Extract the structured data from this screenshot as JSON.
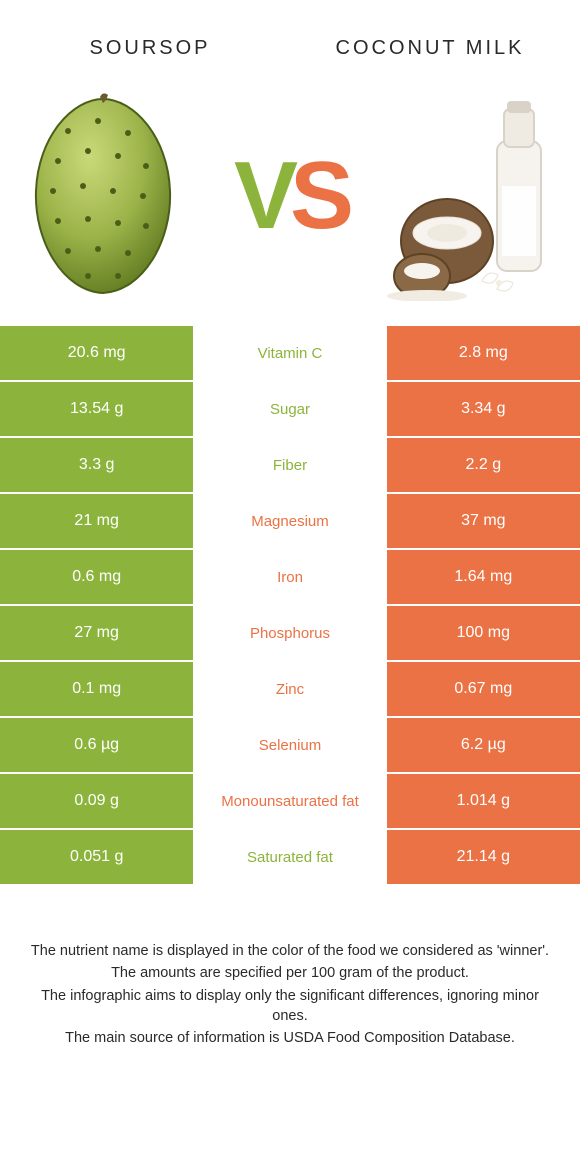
{
  "colors": {
    "left": "#8cb43c",
    "right": "#eb7245",
    "text_dark": "#2a2a2a",
    "white": "#ffffff"
  },
  "left": {
    "title": "SOURSOP"
  },
  "right": {
    "title": "COCONUT MILK"
  },
  "vs": {
    "v": "V",
    "s": "S"
  },
  "rows": [
    {
      "left": "20.6 mg",
      "label": "Vitamin C",
      "right": "2.8 mg",
      "winner": "left"
    },
    {
      "left": "13.54 g",
      "label": "Sugar",
      "right": "3.34 g",
      "winner": "left"
    },
    {
      "left": "3.3 g",
      "label": "Fiber",
      "right": "2.2 g",
      "winner": "left"
    },
    {
      "left": "21 mg",
      "label": "Magnesium",
      "right": "37 mg",
      "winner": "right"
    },
    {
      "left": "0.6 mg",
      "label": "Iron",
      "right": "1.64 mg",
      "winner": "right"
    },
    {
      "left": "27 mg",
      "label": "Phosphorus",
      "right": "100 mg",
      "winner": "right"
    },
    {
      "left": "0.1 mg",
      "label": "Zinc",
      "right": "0.67 mg",
      "winner": "right"
    },
    {
      "left": "0.6 µg",
      "label": "Selenium",
      "right": "6.2 µg",
      "winner": "right"
    },
    {
      "left": "0.09 g",
      "label": "Monounsaturated fat",
      "right": "1.014 g",
      "winner": "right"
    },
    {
      "left": "0.051 g",
      "label": "Saturated fat",
      "right": "21.14 g",
      "winner": "left"
    }
  ],
  "footer": {
    "l1": "The nutrient name is displayed in the color of the food we considered as 'winner'.",
    "l2": "The amounts are specified per 100 gram of the product.",
    "l3": "The infographic aims to display only the significant differences, ignoring minor ones.",
    "l4": "The main source of information is USDA Food Composition Database."
  }
}
